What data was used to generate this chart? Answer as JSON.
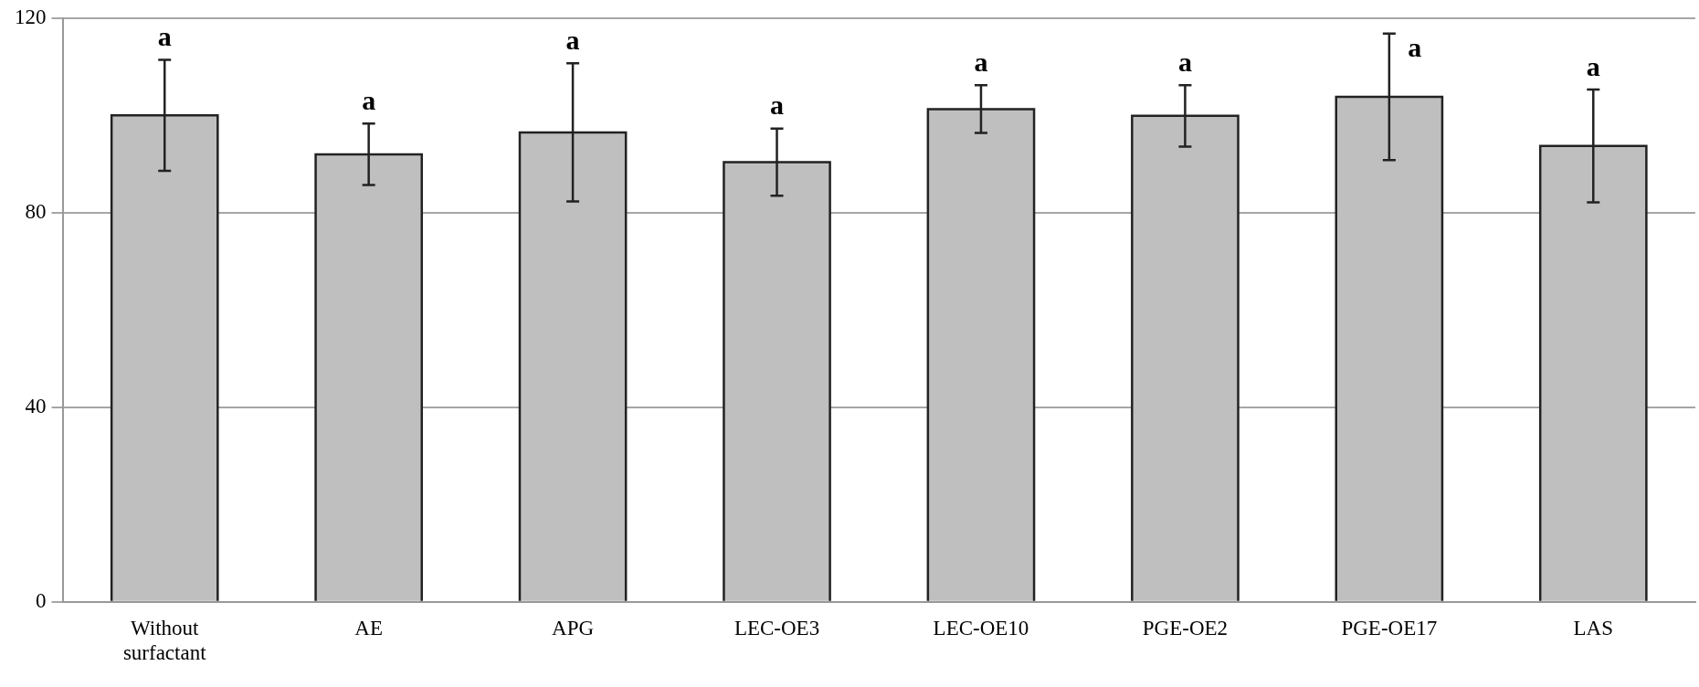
{
  "chart_data": {
    "type": "bar",
    "categories": [
      "Without surfactant",
      "AE",
      "APG",
      "LEC-OE3",
      "LEC-OE10",
      "PGE-OE2",
      "PGE-OE17",
      "LAS"
    ],
    "values": [
      100.0,
      92.0,
      96.5,
      90.4,
      101.3,
      99.9,
      103.8,
      93.7
    ],
    "errors": [
      11.4,
      6.3,
      14.2,
      6.9,
      4.9,
      6.3,
      13.0,
      11.6
    ],
    "color": "#bfbfbf",
    "ylim": [
      0,
      120
    ],
    "yticks": [
      0,
      40,
      80,
      120
    ],
    "grid": "y",
    "annotations": [
      {
        "text": "a",
        "x": "Without surfactant",
        "y": 111.4
      },
      {
        "text": "a",
        "x": "AE",
        "y": 98.3
      },
      {
        "text": "a",
        "x": "APG",
        "y": 110.7
      },
      {
        "text": "a",
        "x": "LEC-OE3",
        "y": 97.3
      },
      {
        "text": "a",
        "x": "LEC-OE10",
        "y": 106.2
      },
      {
        "text": "a",
        "x": "PGE-OE2",
        "y": 106.2
      },
      {
        "text": "a",
        "x": "PGE-OE17",
        "y": 116.8
      },
      {
        "text": "a",
        "x": "LAS",
        "y": 105.3
      }
    ]
  }
}
